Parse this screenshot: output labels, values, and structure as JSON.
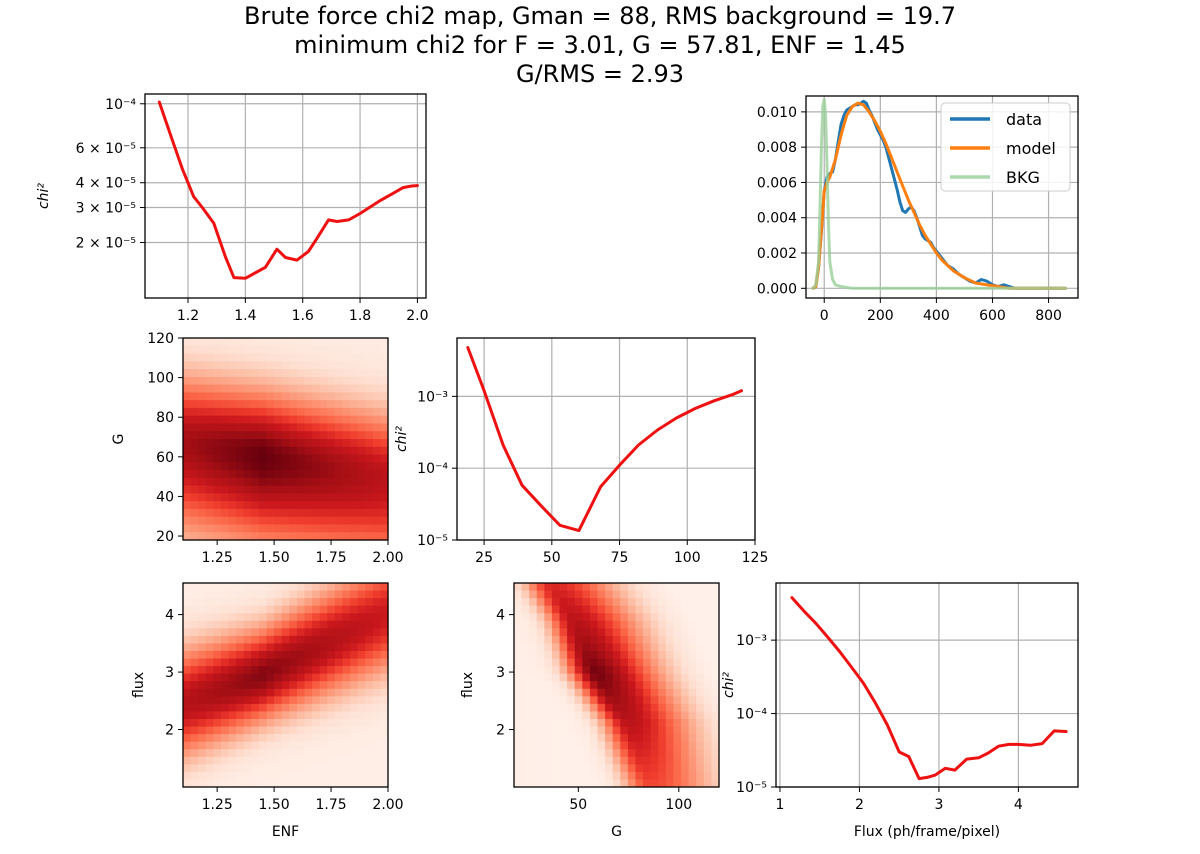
{
  "title_lines": [
    "Brute force chi2 map, Gman = 88, RMS background = 19.7",
    "minimum chi2 for F = 3.01, G = 57.81, ENF = 1.45",
    "G/RMS = 2.93"
  ],
  "colors": {
    "red_curve": "#ee1111",
    "data": "#1f77b4",
    "model": "#ff7f0e",
    "bkg": "#98d098",
    "grid": "#b0b0b0",
    "heat_light": "#fff5f0",
    "heat_dark": "#67000d"
  },
  "chart_data": [
    {
      "id": "enf",
      "type": "line",
      "ylabel": "chi²",
      "xlabel": "",
      "xscale": "linear",
      "yscale": "log",
      "xlim": [
        1.05,
        2.03
      ],
      "ylim": [
        1.05e-05,
        0.000112
      ],
      "xticks": [
        1.2,
        1.4,
        1.6,
        1.8,
        2.0
      ],
      "xtick_labels": [
        "1.2",
        "1.4",
        "1.6",
        "1.8",
        "2.0"
      ],
      "yticks": [
        0.0001,
        6e-05,
        4e-05,
        3e-05,
        2e-05
      ],
      "ytick_labels": [
        "10⁻⁴",
        "6 × 10⁻⁵",
        "4 × 10⁻⁵",
        "3 × 10⁻⁵",
        "2 × 10⁻⁵"
      ],
      "grid": true,
      "color": "#ee1111",
      "x": [
        1.1,
        1.14,
        1.18,
        1.22,
        1.25,
        1.29,
        1.33,
        1.36,
        1.4,
        1.44,
        1.47,
        1.51,
        1.54,
        1.58,
        1.62,
        1.65,
        1.69,
        1.72,
        1.76,
        1.8,
        1.84,
        1.87,
        1.91,
        1.95,
        1.98,
        2.0
      ],
      "y": [
        0.000102,
        6.9e-05,
        4.7e-05,
        3.4e-05,
        3e-05,
        2.5e-05,
        1.7e-05,
        1.33e-05,
        1.32e-05,
        1.42e-05,
        1.5e-05,
        1.85e-05,
        1.68e-05,
        1.63e-05,
        1.8e-05,
        2.1e-05,
        2.6e-05,
        2.55e-05,
        2.6e-05,
        2.8e-05,
        3.05e-05,
        3.25e-05,
        3.5e-05,
        3.78e-05,
        3.85e-05,
        3.87e-05
      ]
    },
    {
      "id": "histogram",
      "type": "line",
      "xlabel": "",
      "ylabel": "",
      "xscale": "linear",
      "yscale": "linear",
      "xlim": [
        -65,
        905
      ],
      "ylim": [
        -0.00055,
        0.0109
      ],
      "xticks": [
        0,
        200,
        400,
        600,
        800
      ],
      "xtick_labels": [
        "0",
        "200",
        "400",
        "600",
        "800"
      ],
      "yticks": [
        0,
        0.002,
        0.004,
        0.006,
        0.008,
        0.01
      ],
      "ytick_labels": [
        "0.000",
        "0.002",
        "0.004",
        "0.006",
        "0.008",
        "0.010"
      ],
      "grid": true,
      "legend_position": "top-right",
      "series": [
        {
          "name": "data",
          "color": "#1f77b4",
          "x": [
            -40,
            -30,
            -20,
            -10,
            0,
            10,
            20,
            30,
            40,
            50,
            60,
            70,
            80,
            90,
            100,
            110,
            120,
            130,
            140,
            150,
            160,
            170,
            180,
            190,
            200,
            210,
            220,
            230,
            240,
            250,
            260,
            270,
            280,
            290,
            300,
            310,
            320,
            330,
            340,
            350,
            360,
            370,
            380,
            390,
            400,
            420,
            440,
            460,
            480,
            500,
            520,
            540,
            560,
            580,
            600,
            620,
            640,
            660,
            680,
            700,
            750,
            800,
            860
          ],
          "y": [
            0,
            0.0001,
            0.0012,
            0.0032,
            0.0055,
            0.0063,
            0.0065,
            0.0066,
            0.0073,
            0.0083,
            0.0093,
            0.0098,
            0.0101,
            0.0102,
            0.0103,
            0.0104,
            0.0104,
            0.0105,
            0.0106,
            0.0105,
            0.0101,
            0.0098,
            0.0094,
            0.009,
            0.0087,
            0.0084,
            0.008,
            0.0074,
            0.0068,
            0.0062,
            0.0056,
            0.0049,
            0.0044,
            0.0043,
            0.0045,
            0.0046,
            0.0044,
            0.004,
            0.0035,
            0.003,
            0.0028,
            0.0027,
            0.0026,
            0.0023,
            0.0021,
            0.0017,
            0.0013,
            0.0011,
            0.0008,
            0.0006,
            0.0004,
            0.0003,
            0.0005,
            0.0004,
            0.0002,
            0.0001,
            0.0002,
            0.0001,
            0.0,
            0.0,
            0.0,
            0.0,
            0.0
          ]
        },
        {
          "name": "model",
          "color": "#ff7f0e",
          "x": [
            -40,
            -30,
            -20,
            -10,
            0,
            10,
            20,
            40,
            60,
            80,
            100,
            120,
            140,
            160,
            180,
            200,
            220,
            240,
            260,
            280,
            300,
            320,
            340,
            360,
            380,
            400,
            420,
            440,
            460,
            480,
            500,
            540,
            580,
            620,
            660,
            700,
            760,
            800,
            860
          ],
          "y": [
            0,
            0.0001,
            0.0012,
            0.0033,
            0.0055,
            0.006,
            0.0063,
            0.0073,
            0.0087,
            0.0098,
            0.0103,
            0.0105,
            0.0104,
            0.01,
            0.0095,
            0.0089,
            0.0082,
            0.0074,
            0.0066,
            0.0058,
            0.005,
            0.0043,
            0.0036,
            0.003,
            0.0025,
            0.002,
            0.0016,
            0.0013,
            0.001,
            0.0008,
            0.0006,
            0.0003,
            0.0002,
            0.0001,
            0.0,
            0.0,
            0.0,
            0.0,
            0.0
          ]
        },
        {
          "name": "BKG",
          "color": "#98d098",
          "x": [
            -40,
            -30,
            -20,
            -15,
            -10,
            -5,
            0,
            5,
            10,
            15,
            20,
            30,
            40,
            60,
            100,
            200,
            400,
            600,
            800,
            860
          ],
          "y": [
            0,
            0.0002,
            0.0015,
            0.0045,
            0.008,
            0.0103,
            0.0107,
            0.0098,
            0.007,
            0.0038,
            0.0015,
            0.0005,
            0.0002,
            0.0001,
            0.0,
            0.0,
            0.0,
            0.0,
            0.0,
            0.0
          ]
        }
      ]
    },
    {
      "id": "enf_g_map",
      "type": "heatmap",
      "xlabel": "",
      "ylabel": "G",
      "xlim": [
        1.1,
        2.0
      ],
      "ylim": [
        18,
        120
      ],
      "xticks": [
        1.25,
        1.5,
        1.75,
        2.0
      ],
      "xtick_labels": [
        "1.25",
        "1.50",
        "1.75",
        "2.00"
      ],
      "yticks": [
        20,
        40,
        60,
        80,
        100,
        120
      ],
      "ytick_labels": [
        "20",
        "40",
        "60",
        "80",
        "100",
        "120"
      ],
      "minimum": {
        "x": 1.45,
        "y": 60
      },
      "colormap": "Reds"
    },
    {
      "id": "g",
      "type": "line",
      "xlabel": "",
      "ylabel": "chi²",
      "xscale": "linear",
      "yscale": "log",
      "xlim": [
        15,
        125
      ],
      "ylim": [
        1e-05,
        0.0065
      ],
      "xticks": [
        25,
        50,
        75,
        100,
        125
      ],
      "xtick_labels": [
        "25",
        "50",
        "75",
        "100",
        "125"
      ],
      "yticks": [
        0.001,
        0.0001,
        1e-05
      ],
      "ytick_labels": [
        "10⁻³",
        "10⁻⁴",
        "10⁻⁵"
      ],
      "grid": true,
      "color": "#ee1111",
      "x": [
        19,
        25,
        32,
        39,
        46,
        53,
        60,
        68,
        75,
        82,
        89,
        96,
        103,
        110,
        117,
        120
      ],
      "y": [
        0.0048,
        0.0012,
        0.00021,
        5.8e-05,
        3e-05,
        1.6e-05,
        1.35e-05,
        5.5e-05,
        0.00011,
        0.00021,
        0.00034,
        0.0005,
        0.00068,
        0.00087,
        0.00107,
        0.0012
      ]
    },
    {
      "id": "enf_flux_map",
      "type": "heatmap",
      "xlabel": "ENF",
      "ylabel": "flux",
      "xlim": [
        1.1,
        2.0
      ],
      "ylim": [
        1.0,
        4.55
      ],
      "xticks": [
        1.25,
        1.5,
        1.75,
        2.0
      ],
      "xtick_labels": [
        "1.25",
        "1.50",
        "1.75",
        "2.00"
      ],
      "yticks": [
        2,
        3,
        4
      ],
      "ytick_labels": [
        "2",
        "3",
        "4"
      ],
      "ridge": [
        [
          1.1,
          2.45
        ],
        [
          1.45,
          2.95
        ],
        [
          2.0,
          4.0
        ]
      ],
      "colormap": "Reds"
    },
    {
      "id": "g_flux_map",
      "type": "heatmap",
      "xlabel": "G",
      "ylabel": "flux",
      "xlim": [
        18,
        120
      ],
      "ylim": [
        1.0,
        4.55
      ],
      "xticks": [
        50,
        100
      ],
      "xtick_labels": [
        "50",
        "100"
      ],
      "yticks": [
        2,
        3,
        4
      ],
      "ytick_labels": [
        "2",
        "3",
        "4"
      ],
      "ridge": [
        [
          36,
          4.55
        ],
        [
          48,
          3.9
        ],
        [
          58,
          3.0
        ],
        [
          75,
          2.1
        ]
      ],
      "colormap": "Reds"
    },
    {
      "id": "flux",
      "type": "line",
      "xlabel": "Flux (ph/frame/pixel)",
      "ylabel": "chi²",
      "xscale": "linear",
      "yscale": "log",
      "xlim": [
        0.95,
        4.75
      ],
      "ylim": [
        1e-05,
        0.006
      ],
      "xticks": [
        1,
        2,
        3,
        4
      ],
      "xtick_labels": [
        "1",
        "2",
        "3",
        "4"
      ],
      "yticks": [
        0.001,
        0.0001,
        1e-05
      ],
      "ytick_labels": [
        "10⁻³",
        "10⁻⁴",
        "10⁻⁵"
      ],
      "grid": true,
      "color": "#ee1111",
      "x": [
        1.15,
        1.3,
        1.45,
        1.6,
        1.75,
        1.9,
        2.05,
        2.2,
        2.35,
        2.5,
        2.62,
        2.75,
        2.85,
        2.95,
        3.08,
        3.2,
        3.35,
        3.5,
        3.62,
        3.75,
        3.88,
        4.0,
        4.15,
        4.3,
        4.45,
        4.6
      ],
      "y": [
        0.0038,
        0.0025,
        0.0017,
        0.0011,
        0.0007,
        0.00043,
        0.00026,
        0.00014,
        7e-05,
        3e-05,
        2.6e-05,
        1.3e-05,
        1.35e-05,
        1.45e-05,
        1.8e-05,
        1.7e-05,
        2.4e-05,
        2.5e-05,
        2.9e-05,
        3.6e-05,
        3.8e-05,
        3.8e-05,
        3.7e-05,
        3.9e-05,
        5.8e-05,
        5.7e-05
      ]
    }
  ]
}
